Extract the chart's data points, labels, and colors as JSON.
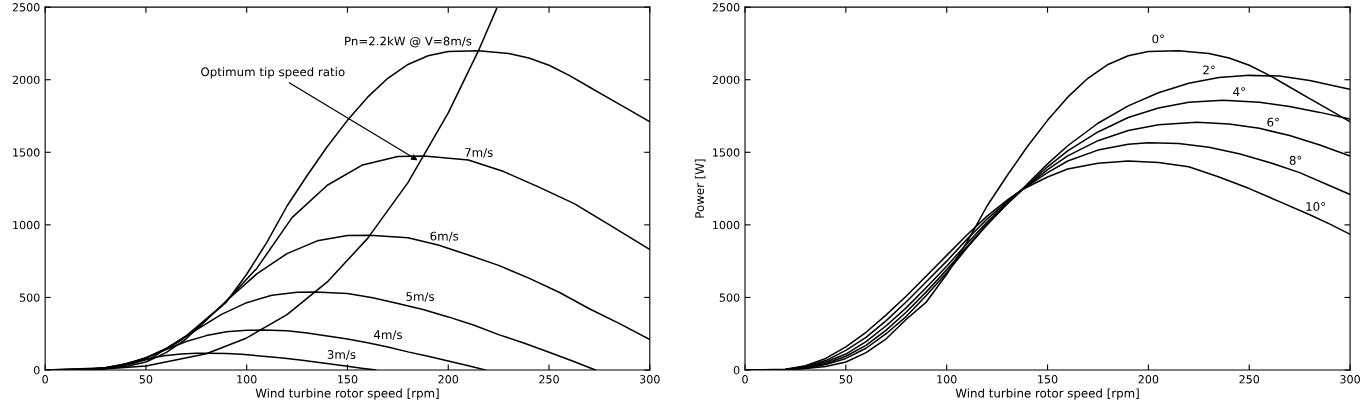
{
  "chart_data": [
    {
      "type": "line",
      "xlabel": "Wind turbine rotor speed [rpm]",
      "xlim": [
        0,
        300
      ],
      "ylim": [
        0,
        2500
      ],
      "xticks": [
        0,
        50,
        100,
        150,
        200,
        250,
        300
      ],
      "yticks": [
        0,
        500,
        1000,
        1500,
        2000,
        2500
      ],
      "grid": false,
      "legend": false,
      "annotations": [
        {
          "text": "Optimum tip speed ratio",
          "x": 186,
          "y": 1435
        }
      ],
      "series": [
        {
          "name": "Pn=2.2kW @ V=8m/s",
          "color": "#000000",
          "x": [
            0,
            10,
            20,
            30,
            40,
            50,
            60,
            70,
            80,
            90,
            100,
            110,
            120,
            130,
            140,
            150,
            160,
            170,
            180,
            190,
            200,
            215,
            230,
            240,
            250,
            260,
            270,
            280,
            290,
            300
          ],
          "values": [
            0,
            1,
            3,
            10,
            25,
            55,
            120,
            215,
            350,
            470,
            660,
            880,
            1130,
            1340,
            1540,
            1720,
            1880,
            2010,
            2105,
            2165,
            2195,
            2200,
            2180,
            2150,
            2100,
            2030,
            1950,
            1870,
            1790,
            1710
          ]
        },
        {
          "name": "7m/s",
          "color": "#000000",
          "x": [
            0,
            35,
            52.5,
            70,
            87.5,
            105,
            122.5,
            140,
            157.5,
            175,
            188,
            210,
            227.5,
            245,
            262.5,
            280,
            300
          ],
          "values": [
            0,
            17,
            80,
            235,
            440,
            700,
            1050,
            1273,
            1413,
            1471,
            1474,
            1447,
            1367,
            1260,
            1146,
            1000,
            830
          ]
        },
        {
          "name": "6m/s",
          "color": "#000000",
          "x": [
            0,
            30,
            45,
            60,
            75,
            90,
            105,
            120,
            135,
            150,
            161,
            180,
            195,
            210,
            225,
            240,
            255,
            270,
            285,
            300
          ],
          "values": [
            0,
            11,
            51,
            148,
            278,
            477,
            662,
            802,
            890,
            926,
            928,
            911,
            861,
            793,
            721,
            633,
            536,
            422,
            320,
            210
          ]
        },
        {
          "name": "5m/s",
          "color": "#000000",
          "x": [
            0,
            25,
            37.5,
            50,
            62.5,
            75,
            87.5,
            100,
            112.5,
            125,
            134,
            150,
            162.5,
            175,
            187.5,
            200,
            212.5,
            225,
            237.5,
            250,
            262,
            273
          ],
          "values": [
            0,
            6,
            29,
            85,
            161,
            276,
            383,
            464,
            515,
            536,
            537,
            527,
            498,
            459,
            417,
            366,
            310,
            244,
            186,
            122,
            60,
            0
          ]
        },
        {
          "name": "4m/s",
          "color": "#000000",
          "x": [
            0,
            20,
            30,
            40,
            50,
            60,
            70,
            80,
            90,
            100,
            108,
            120,
            130,
            140,
            150,
            160,
            170,
            180,
            190,
            200,
            210,
            218.5
          ],
          "values": [
            0,
            3,
            15,
            44,
            83,
            141,
            196,
            237,
            264,
            274,
            275,
            270,
            255,
            235,
            214,
            188,
            159,
            125,
            95,
            62,
            30,
            0
          ]
        },
        {
          "name": "3m/s",
          "color": "#000000",
          "x": [
            0,
            15,
            22.5,
            30,
            37.5,
            45,
            52.5,
            60,
            67.5,
            75,
            80.6,
            90,
            97.5,
            105,
            112.5,
            120,
            127.5,
            135,
            142.5,
            150,
            157,
            164
          ],
          "values": [
            0,
            2,
            7,
            18,
            35,
            58,
            83,
            100,
            111,
            116,
            116,
            114,
            108,
            99,
            90,
            79,
            67,
            53,
            40,
            26,
            13,
            0
          ]
        },
        {
          "color": "#000000",
          "x": [
            0,
            25,
            50,
            80,
            100,
            120,
            140,
            160,
            180,
            200,
            215,
            224
          ],
          "values": [
            0,
            3,
            28,
            112,
            221,
            382,
            607,
            907,
            1291,
            1771,
            2200,
            2490
          ]
        }
      ]
    },
    {
      "type": "line",
      "xlabel": "Wind turbine rotor speed [rpm]",
      "ylabel": "Power [W]",
      "xlim": [
        0,
        300
      ],
      "ylim": [
        0,
        2500
      ],
      "xticks": [
        0,
        50,
        100,
        150,
        200,
        250,
        300
      ],
      "yticks": [
        0,
        500,
        1000,
        1500,
        2000,
        2500
      ],
      "grid": false,
      "legend": false,
      "series": [
        {
          "name": "0°",
          "color": "#000000",
          "x": [
            0,
            10,
            20,
            30,
            40,
            50,
            60,
            70,
            80,
            90,
            100,
            110,
            120,
            130,
            140,
            150,
            160,
            170,
            180,
            190,
            200,
            215,
            230,
            240,
            250,
            260,
            270,
            280,
            290,
            300
          ],
          "values": [
            0,
            1,
            3,
            10,
            25,
            55,
            120,
            215,
            350,
            470,
            660,
            880,
            1130,
            1340,
            1540,
            1720,
            1880,
            2010,
            2105,
            2165,
            2195,
            2200,
            2180,
            2150,
            2100,
            2030,
            1950,
            1870,
            1790,
            1710
          ]
        },
        {
          "name": "2°",
          "color": "#000000",
          "x": [
            0,
            20,
            30,
            40,
            50,
            60,
            70,
            80,
            90,
            100,
            110,
            120,
            130,
            137,
            150,
            160,
            175,
            190,
            205,
            220,
            235,
            250,
            265,
            280,
            300
          ],
          "values": [
            0,
            2,
            12,
            38,
            80,
            150,
            250,
            370,
            515,
            670,
            840,
            1000,
            1145,
            1240,
            1420,
            1545,
            1700,
            1820,
            1910,
            1975,
            2015,
            2030,
            2025,
            1995,
            1933
          ]
        },
        {
          "name": "4°",
          "color": "#000000",
          "x": [
            0,
            20,
            30,
            40,
            50,
            60,
            70,
            80,
            90,
            100,
            110,
            120,
            130,
            137,
            150,
            160,
            175,
            190,
            205,
            220,
            237,
            255,
            270,
            285,
            300
          ],
          "values": [
            0,
            2,
            15,
            45,
            95,
            170,
            275,
            400,
            540,
            690,
            850,
            1005,
            1145,
            1235,
            1400,
            1510,
            1640,
            1740,
            1805,
            1845,
            1858,
            1845,
            1815,
            1775,
            1728
          ]
        },
        {
          "name": "6°",
          "color": "#000000",
          "x": [
            0,
            20,
            30,
            40,
            50,
            60,
            70,
            80,
            90,
            100,
            110,
            120,
            130,
            137,
            150,
            160,
            175,
            190,
            205,
            224,
            240,
            255,
            270,
            285,
            300
          ],
          "values": [
            0,
            3,
            20,
            55,
            110,
            195,
            305,
            430,
            570,
            715,
            870,
            1020,
            1150,
            1235,
            1380,
            1475,
            1580,
            1650,
            1690,
            1707,
            1695,
            1665,
            1615,
            1550,
            1475
          ]
        },
        {
          "name": "8°",
          "color": "#000000",
          "x": [
            0,
            20,
            30,
            40,
            50,
            60,
            70,
            80,
            90,
            100,
            110,
            120,
            130,
            137,
            150,
            160,
            175,
            190,
            200,
            215,
            230,
            245,
            260,
            275,
            290,
            300
          ],
          "values": [
            0,
            4,
            25,
            65,
            135,
            225,
            340,
            470,
            610,
            750,
            900,
            1040,
            1160,
            1240,
            1360,
            1440,
            1515,
            1555,
            1565,
            1560,
            1535,
            1490,
            1430,
            1360,
            1270,
            1210
          ]
        },
        {
          "name": "10°",
          "color": "#000000",
          "x": [
            0,
            20,
            30,
            40,
            50,
            60,
            70,
            80,
            90,
            100,
            110,
            120,
            130,
            137,
            150,
            160,
            175,
            190,
            205,
            220,
            235,
            250,
            265,
            280,
            290,
            300
          ],
          "values": [
            0,
            5,
            30,
            80,
            160,
            260,
            380,
            510,
            650,
            790,
            930,
            1060,
            1170,
            1240,
            1330,
            1385,
            1425,
            1440,
            1430,
            1400,
            1330,
            1250,
            1160,
            1070,
            1005,
            935
          ]
        }
      ]
    }
  ]
}
